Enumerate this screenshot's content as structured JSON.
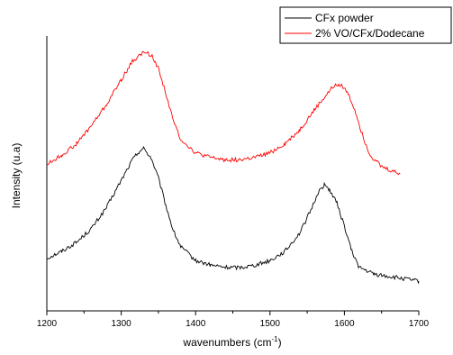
{
  "chart_data": {
    "type": "line",
    "title": "",
    "xlabel": "wavenumbers (cm",
    "xlabel_sup": "-1",
    "xlabel_suffix": ")",
    "ylabel": "Intensity (u.a)",
    "xlim": [
      1200,
      1700
    ],
    "x_ticks": [
      1200,
      1300,
      1400,
      1500,
      1600,
      1700
    ],
    "y_ticks_shown": false,
    "grid": false,
    "legend_position": "top-right",
    "series": [
      {
        "name": "CFx powder",
        "color": "#000000",
        "points": [
          [
            1200,
            0.1
          ],
          [
            1220,
            0.13
          ],
          [
            1240,
            0.17
          ],
          [
            1260,
            0.23
          ],
          [
            1280,
            0.32
          ],
          [
            1300,
            0.44
          ],
          [
            1315,
            0.53
          ],
          [
            1325,
            0.57
          ],
          [
            1330,
            0.58
          ],
          [
            1340,
            0.54
          ],
          [
            1350,
            0.45
          ],
          [
            1360,
            0.33
          ],
          [
            1370,
            0.22
          ],
          [
            1380,
            0.15
          ],
          [
            1400,
            0.09
          ],
          [
            1420,
            0.07
          ],
          [
            1440,
            0.06
          ],
          [
            1460,
            0.06
          ],
          [
            1480,
            0.07
          ],
          [
            1500,
            0.09
          ],
          [
            1520,
            0.13
          ],
          [
            1540,
            0.21
          ],
          [
            1555,
            0.31
          ],
          [
            1565,
            0.39
          ],
          [
            1573,
            0.42
          ],
          [
            1580,
            0.4
          ],
          [
            1590,
            0.34
          ],
          [
            1600,
            0.24
          ],
          [
            1610,
            0.13
          ],
          [
            1620,
            0.06
          ],
          [
            1640,
            0.03
          ],
          [
            1660,
            0.02
          ],
          [
            1680,
            0.01
          ],
          [
            1700,
            0.0
          ]
        ]
      },
      {
        "name": "2% VO/CFx/Dodecane",
        "color": "#ff0000",
        "points": [
          [
            1200,
            0.51
          ],
          [
            1220,
            0.55
          ],
          [
            1240,
            0.6
          ],
          [
            1260,
            0.68
          ],
          [
            1280,
            0.77
          ],
          [
            1300,
            0.88
          ],
          [
            1315,
            0.96
          ],
          [
            1330,
            1.0
          ],
          [
            1340,
            0.99
          ],
          [
            1350,
            0.93
          ],
          [
            1360,
            0.82
          ],
          [
            1370,
            0.7
          ],
          [
            1380,
            0.62
          ],
          [
            1400,
            0.56
          ],
          [
            1420,
            0.54
          ],
          [
            1440,
            0.53
          ],
          [
            1460,
            0.53
          ],
          [
            1480,
            0.54
          ],
          [
            1500,
            0.56
          ],
          [
            1520,
            0.6
          ],
          [
            1540,
            0.66
          ],
          [
            1560,
            0.75
          ],
          [
            1575,
            0.81
          ],
          [
            1585,
            0.85
          ],
          [
            1595,
            0.86
          ],
          [
            1605,
            0.82
          ],
          [
            1615,
            0.74
          ],
          [
            1625,
            0.63
          ],
          [
            1635,
            0.55
          ],
          [
            1650,
            0.5
          ],
          [
            1665,
            0.48
          ],
          [
            1675,
            0.47
          ]
        ]
      }
    ]
  }
}
